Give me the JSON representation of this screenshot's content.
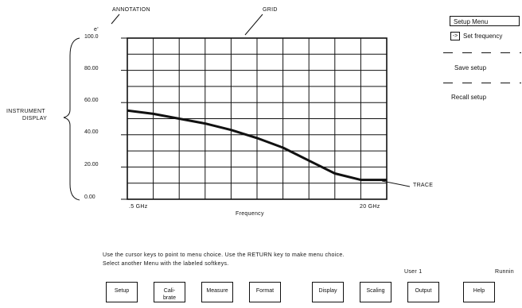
{
  "annotations": {
    "annotation": "ANNOTATION",
    "annotation_marker": "e'",
    "grid": "GRID",
    "instrument_display_line1": "INSTRUMENT",
    "instrument_display_line2": "DISPLAY",
    "trace": "TRACE"
  },
  "chart_data": {
    "type": "line",
    "xlabel": "Frequency",
    "ylabel": "",
    "x_tick_labels": [
      ".5 GHz",
      "20 GHz"
    ],
    "y_tick_labels": [
      "100.0",
      "80.00",
      "60.00",
      "40.00",
      "20.00",
      "0.00"
    ],
    "ylim": [
      0,
      100
    ],
    "xlim": [
      0,
      10
    ],
    "grid": true,
    "series": [
      {
        "x": [
          0,
          1,
          2,
          3,
          4,
          5,
          6,
          7,
          8,
          9,
          10
        ],
        "y": [
          55,
          53,
          50,
          47,
          43,
          38,
          32,
          24,
          16,
          12,
          12
        ]
      }
    ]
  },
  "menu": {
    "title": "Setup Menu",
    "pointer": "->",
    "items": [
      "Set frequency",
      "Save setup",
      "Recall setup"
    ]
  },
  "instructions": {
    "line1": "Use the cursor keys to point to menu choice. Use the RETURN key to make menu choice.",
    "line2": "Select another Menu with the labeled softkeys."
  },
  "status": {
    "user": "User  1",
    "run_state": "Runnin"
  },
  "softkeys": [
    "Setup",
    "Cali-\nbrate",
    "Measure",
    "Format",
    "Display",
    "Scaling",
    "Output",
    "Help"
  ]
}
